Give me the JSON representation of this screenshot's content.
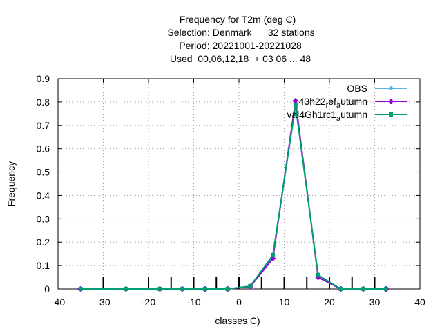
{
  "chart_data": {
    "type": "line",
    "title_lines": [
      "Frequency  for T2m (deg C)",
      "Selection: Denmark      32 stations",
      "Period: 20221001-20221028",
      "Used  00,06,12,18  + 03 06 ... 48"
    ],
    "xlabel": "classes C)",
    "ylabel": "Frequency",
    "xlim": [
      -40,
      40
    ],
    "ylim": [
      0,
      0.9
    ],
    "xticks": [
      -40,
      -30,
      -20,
      -10,
      0,
      10,
      20,
      30,
      40
    ],
    "yticks": [
      0,
      0.1,
      0.2,
      0.3,
      0.4,
      0.5,
      0.6,
      0.7,
      0.8,
      0.9
    ],
    "grid": true,
    "legend_position": "top-right",
    "class_boundaries": [
      -30,
      -20,
      -15,
      -10,
      -5,
      0,
      5,
      10,
      15,
      20,
      25,
      30
    ],
    "x": [
      -35,
      -25,
      -17.5,
      -12.5,
      -7.5,
      -2.5,
      2.5,
      7.5,
      12.5,
      17.5,
      22.5,
      27.5,
      32.5
    ],
    "series": [
      {
        "name": "OBS",
        "legend_text": "OBS",
        "color": "#56b4e9",
        "marker": "circle",
        "values": [
          0,
          0,
          0,
          0,
          0,
          0,
          0.012,
          0.14,
          0.79,
          0.055,
          0,
          0,
          0
        ]
      },
      {
        "name": "43h22_ref_autumn",
        "legend_text": "43h22",
        "legend_sub1": "r",
        "legend_mid": "ef",
        "legend_sub2": "a",
        "legend_end": "utumn",
        "color": "#9400d3",
        "marker": "plus",
        "values": [
          0,
          0,
          0,
          0,
          0,
          0,
          0.01,
          0.13,
          0.805,
          0.05,
          0,
          0,
          0
        ]
      },
      {
        "name": "val4Gh1rc1_autumn",
        "legend_text": "val4Gh1rc1",
        "legend_sub": "a",
        "legend_end": "utumn",
        "color": "#009e73",
        "marker": "square",
        "values": [
          0,
          0,
          0,
          0,
          0,
          0,
          0.012,
          0.145,
          0.785,
          0.06,
          0,
          0,
          0
        ]
      }
    ]
  }
}
